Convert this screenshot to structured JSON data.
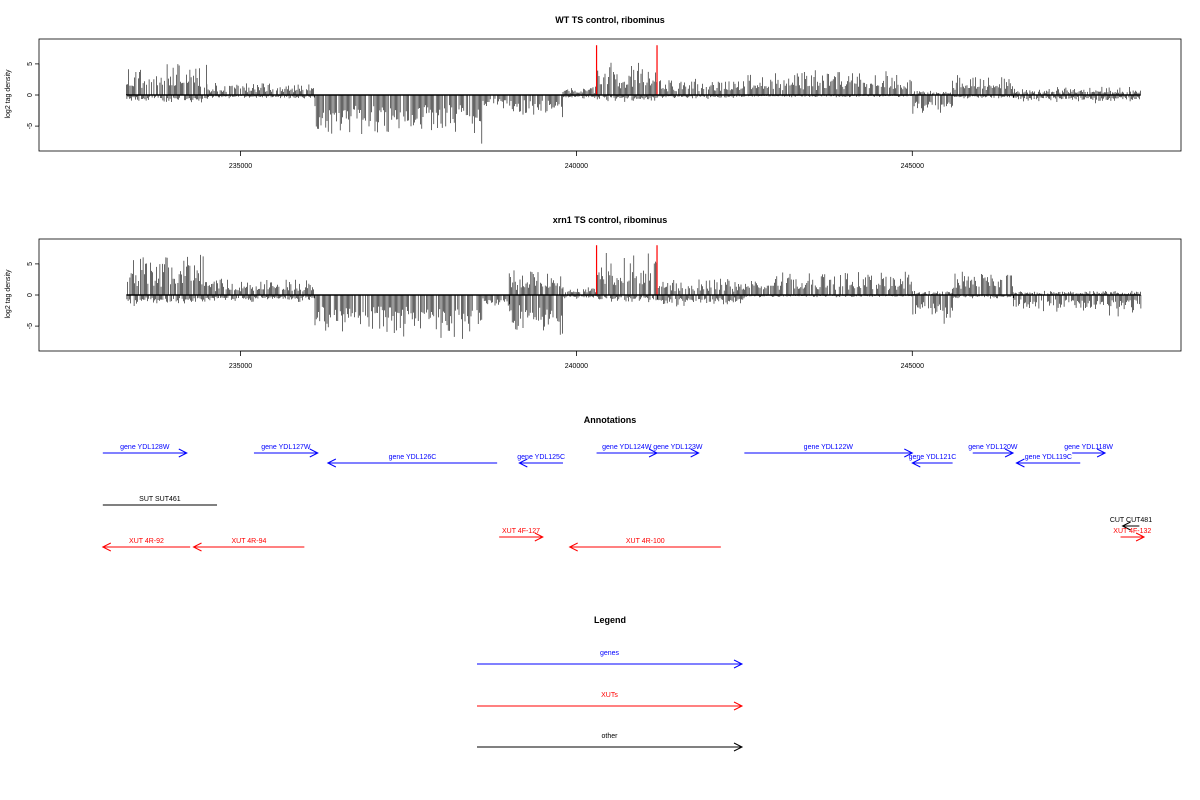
{
  "colors": {
    "gene": "#0000ff",
    "xut": "#ff0000",
    "other": "#000000",
    "signal": "#000000",
    "highlight": "#ff0000"
  },
  "chart_data": [
    {
      "type": "bar",
      "title": "WT TS control, ribominus",
      "ylabel": "log2 tag density",
      "xlabel": "",
      "xlim": [
        232000,
        249000
      ],
      "ylim": [
        -9,
        9
      ],
      "grid": false,
      "x_ticks": [
        235000,
        240000,
        245000
      ],
      "y_ticks": [
        -5,
        0,
        5
      ],
      "data_range": [
        233300,
        248400
      ],
      "highlights": [
        240300,
        241200
      ],
      "signal_profile": [
        {
          "x0": 233300,
          "x1": 234500,
          "pos": 4,
          "neg": -1
        },
        {
          "x0": 234500,
          "x1": 236100,
          "pos": 1.5,
          "neg": -0.5
        },
        {
          "x0": 236100,
          "x1": 238600,
          "pos": 0,
          "neg": -6
        },
        {
          "x0": 238600,
          "x1": 239000,
          "pos": 0,
          "neg": -2
        },
        {
          "x0": 239000,
          "x1": 239800,
          "pos": 0,
          "neg": -3
        },
        {
          "x0": 239800,
          "x1": 240300,
          "pos": 1,
          "neg": -0.5
        },
        {
          "x0": 240300,
          "x1": 241200,
          "pos": 4,
          "neg": -1
        },
        {
          "x0": 241200,
          "x1": 242500,
          "pos": 2,
          "neg": -0.5
        },
        {
          "x0": 242500,
          "x1": 245000,
          "pos": 3,
          "neg": -0.3
        },
        {
          "x0": 245000,
          "x1": 245600,
          "pos": 0.5,
          "neg": -3
        },
        {
          "x0": 245600,
          "x1": 246500,
          "pos": 2.5,
          "neg": -0.5
        },
        {
          "x0": 246500,
          "x1": 248400,
          "pos": 1,
          "neg": -1
        }
      ]
    },
    {
      "type": "bar",
      "title": "xrn1 TS control, ribominus",
      "ylabel": "log2 tag density",
      "xlabel": "",
      "xlim": [
        232000,
        249000
      ],
      "ylim": [
        -9,
        9
      ],
      "grid": false,
      "x_ticks": [
        235000,
        240000,
        245000
      ],
      "y_ticks": [
        -5,
        0,
        5
      ],
      "data_range": [
        233300,
        248400
      ],
      "highlights": [
        240300,
        241200
      ],
      "signal_profile": [
        {
          "x0": 233300,
          "x1": 234500,
          "pos": 5,
          "neg": -1.5
        },
        {
          "x0": 234500,
          "x1": 236100,
          "pos": 2,
          "neg": -1
        },
        {
          "x0": 236100,
          "x1": 238600,
          "pos": 0,
          "neg": -6.5
        },
        {
          "x0": 238600,
          "x1": 239000,
          "pos": 0,
          "neg": -2
        },
        {
          "x0": 239000,
          "x1": 239800,
          "pos": 3,
          "neg": -6
        },
        {
          "x0": 239800,
          "x1": 240300,
          "pos": 1,
          "neg": -0.5
        },
        {
          "x0": 240300,
          "x1": 241200,
          "pos": 5,
          "neg": -1
        },
        {
          "x0": 241200,
          "x1": 242500,
          "pos": 2,
          "neg": -1.5
        },
        {
          "x0": 242500,
          "x1": 245000,
          "pos": 3,
          "neg": -0.3
        },
        {
          "x0": 245000,
          "x1": 245600,
          "pos": 0.5,
          "neg": -4
        },
        {
          "x0": 245600,
          "x1": 246500,
          "pos": 3,
          "neg": -0.5
        },
        {
          "x0": 246500,
          "x1": 248400,
          "pos": 0.5,
          "neg": -2.5
        }
      ]
    }
  ],
  "annotations": {
    "title": "Annotations",
    "xlim": [
      232000,
      249000
    ],
    "features": [
      {
        "label": "gene YDL128W",
        "type": "gene",
        "strand": "+",
        "start": 232950,
        "end": 234200,
        "row": 0
      },
      {
        "label": "gene YDL127W",
        "type": "gene",
        "strand": "+",
        "start": 235200,
        "end": 236150,
        "row": 0
      },
      {
        "label": "gene YDL126C",
        "type": "gene",
        "strand": "-",
        "start": 236300,
        "end": 238820,
        "row": 1
      },
      {
        "label": "gene YDL125C",
        "type": "gene",
        "strand": "-",
        "start": 239150,
        "end": 239800,
        "row": 1
      },
      {
        "label": "gene YDL124W",
        "type": "gene",
        "strand": "+",
        "start": 240300,
        "end": 241200,
        "row": 0
      },
      {
        "label": "gene YDL123W",
        "type": "gene",
        "strand": "+",
        "start": 241200,
        "end": 241820,
        "row": 0
      },
      {
        "label": "gene YDL122W",
        "type": "gene",
        "strand": "+",
        "start": 242500,
        "end": 245000,
        "row": 0
      },
      {
        "label": "gene YDL121C",
        "type": "gene",
        "strand": "-",
        "start": 245000,
        "end": 245600,
        "row": 1
      },
      {
        "label": "gene YDL120W",
        "type": "gene",
        "strand": "+",
        "start": 245900,
        "end": 246500,
        "row": 0
      },
      {
        "label": "gene YDL119C",
        "type": "gene",
        "strand": "-",
        "start": 246550,
        "end": 247500,
        "row": 1
      },
      {
        "label": "gene YDL118W",
        "type": "gene",
        "strand": "+",
        "start": 247380,
        "end": 247870,
        "row": 0
      },
      {
        "label": "SUT SUT461",
        "type": "other",
        "strand": ".",
        "start": 232950,
        "end": 234650,
        "row": 2
      },
      {
        "label": "CUT CUT481",
        "type": "other",
        "strand": "-",
        "start": 248130,
        "end": 248380,
        "row": 3
      },
      {
        "label": "XUT 4R-92",
        "type": "xut",
        "strand": "-",
        "start": 232950,
        "end": 234250,
        "row": 4
      },
      {
        "label": "XUT 4R-94",
        "type": "xut",
        "strand": "-",
        "start": 234300,
        "end": 235950,
        "row": 4
      },
      {
        "label": "XUT 4F-127",
        "type": "xut",
        "strand": "+",
        "start": 238850,
        "end": 239500,
        "row": 5
      },
      {
        "label": "XUT 4R-100",
        "type": "xut",
        "strand": "-",
        "start": 239900,
        "end": 242150,
        "row": 4
      },
      {
        "label": "XUT 4F-132",
        "type": "xut",
        "strand": "+",
        "start": 248100,
        "end": 248450,
        "row": 5
      }
    ]
  },
  "legend": {
    "title": "Legend",
    "items": [
      {
        "label": "genes",
        "type": "gene"
      },
      {
        "label": "XUTs",
        "type": "xut"
      },
      {
        "label": "other",
        "type": "other"
      }
    ]
  }
}
